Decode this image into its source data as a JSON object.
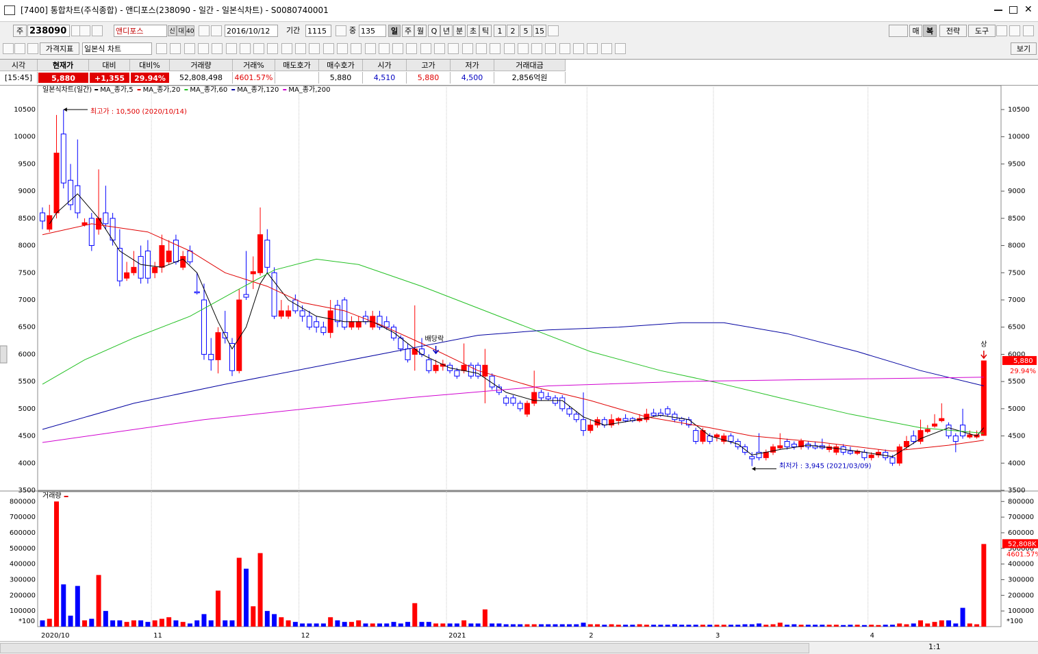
{
  "titlebar": {
    "title": "[7400] 통합차트(주식종합) - 앤디포스(238090 - 일간 - 일본식차트) - S0080740001"
  },
  "toolbar1": {
    "market": "주",
    "code": "238090",
    "name": "앤디포스",
    "flags": [
      "신",
      "대",
      "40"
    ],
    "date": "2016/10/12",
    "period_label": "기간",
    "period": "1115",
    "count_label": "중",
    "count": "135",
    "intervals": [
      "일",
      "주",
      "월",
      "Q",
      "년",
      "분",
      "초",
      "틱",
      "1",
      "2",
      "5",
      "15"
    ],
    "right": [
      "매",
      "복",
      "전략",
      "도구"
    ]
  },
  "toolbar2": {
    "indicator": "가격지표",
    "chart_type": "일본식 차트",
    "view": "보기"
  },
  "quote": {
    "cells": [
      {
        "header": "시각",
        "value": "[15:45]"
      },
      {
        "header": "현재가",
        "value": "5,880"
      },
      {
        "header": "대비",
        "value": "+1,355"
      },
      {
        "header": "대비%",
        "value": "29.94%"
      },
      {
        "header": "거래량",
        "value": "52,808,498"
      },
      {
        "header": "거래%",
        "value": "4601.57%"
      },
      {
        "header": "매도호가"
      },
      {
        "header": "매수호가",
        "value": "5,880"
      },
      {
        "header": "시가",
        "value": "4,510"
      },
      {
        "header": "고가",
        "value": "5,880"
      },
      {
        "header": "저가",
        "value": "4,500"
      },
      {
        "header": "거래대금",
        "value": "2,856억원"
      }
    ]
  },
  "statusbar": {
    "zoom": "1:1"
  },
  "chart_data": {
    "type": "candlestick",
    "legend_title": "일본식차트(일간)",
    "up_color": "#ff0000",
    "down_color": "#0000ff",
    "categories": [
      "2020/10",
      null,
      null,
      null,
      null,
      null,
      null,
      null,
      null,
      null,
      null,
      null,
      null,
      null,
      null,
      null,
      "11",
      null,
      null,
      null,
      null,
      null,
      null,
      null,
      null,
      null,
      null,
      null,
      null,
      null,
      null,
      null,
      null,
      null,
      null,
      null,
      null,
      "12",
      null,
      null,
      null,
      null,
      null,
      null,
      null,
      null,
      null,
      null,
      null,
      null,
      null,
      null,
      null,
      null,
      null,
      null,
      null,
      null,
      "2021",
      null,
      null,
      null,
      null,
      null,
      null,
      null,
      null,
      null,
      null,
      null,
      null,
      null,
      null,
      null,
      null,
      null,
      null,
      null,
      "2",
      null,
      null,
      null,
      null,
      null,
      null,
      null,
      null,
      null,
      null,
      null,
      null,
      null,
      null,
      null,
      null,
      null,
      "3",
      null,
      null,
      null,
      null,
      null,
      null,
      null,
      null,
      null,
      null,
      null,
      null,
      null,
      null,
      null,
      null,
      null,
      null,
      null,
      null,
      null,
      "4",
      null,
      null,
      null,
      null,
      null,
      null,
      null,
      null,
      null,
      null,
      null,
      null,
      null,
      null,
      null,
      null
    ],
    "candles": [
      [
        8600,
        8700,
        8300,
        8450
      ],
      [
        8300,
        8750,
        8250,
        8550
      ],
      [
        8600,
        10400,
        8500,
        9700
      ],
      [
        10050,
        10500,
        9050,
        9150
      ],
      [
        9200,
        9500,
        8650,
        8750
      ],
      [
        9100,
        9950,
        8500,
        8600
      ],
      [
        8380,
        8500,
        8350,
        8420
      ],
      [
        8500,
        8600,
        7900,
        8000
      ],
      [
        8300,
        9400,
        8200,
        8500
      ],
      [
        8600,
        9100,
        8300,
        8400
      ],
      [
        8500,
        8600,
        8000,
        8100
      ],
      [
        7950,
        8300,
        7250,
        7350
      ],
      [
        7400,
        7700,
        7350,
        7500
      ],
      [
        7500,
        7900,
        7450,
        7600
      ],
      [
        7800,
        8000,
        7300,
        7400
      ],
      [
        7900,
        8100,
        7300,
        7400
      ],
      [
        7500,
        7700,
        7400,
        7600
      ],
      [
        7600,
        8200,
        7500,
        8000
      ],
      [
        7700,
        8100,
        7650,
        7900
      ],
      [
        8100,
        8200,
        7650,
        7700
      ],
      [
        7600,
        7900,
        7550,
        7800
      ],
      [
        7900,
        8000,
        7650,
        7700
      ],
      [
        7150,
        7500,
        7100,
        7130
      ],
      [
        7000,
        7300,
        5900,
        6000
      ],
      [
        6000,
        6300,
        5700,
        5900
      ],
      [
        5900,
        6500,
        5650,
        6400
      ],
      [
        6400,
        6800,
        6200,
        6300
      ],
      [
        6200,
        6300,
        5600,
        5700
      ],
      [
        5700,
        7200,
        5650,
        7000
      ],
      [
        7100,
        7900,
        7000,
        7050
      ],
      [
        7480,
        7800,
        7200,
        7520
      ],
      [
        7500,
        8700,
        7450,
        8200
      ],
      [
        8100,
        8300,
        7500,
        7600
      ],
      [
        7500,
        7600,
        6650,
        6700
      ],
      [
        6700,
        7000,
        6650,
        6800
      ],
      [
        6700,
        6900,
        6650,
        6800
      ],
      [
        7000,
        7100,
        6750,
        6800
      ],
      [
        6800,
        6900,
        6600,
        6700
      ],
      [
        6700,
        6800,
        6450,
        6500
      ],
      [
        6600,
        6700,
        6400,
        6500
      ],
      [
        6500,
        6600,
        6350,
        6400
      ],
      [
        6400,
        7000,
        6300,
        6800
      ],
      [
        6900,
        7000,
        6500,
        6600
      ],
      [
        7000,
        7050,
        6450,
        6500
      ],
      [
        6500,
        6700,
        6450,
        6600
      ],
      [
        6500,
        6700,
        6450,
        6600
      ],
      [
        6700,
        6800,
        6550,
        6600
      ],
      [
        6500,
        6800,
        6450,
        6700
      ],
      [
        6700,
        6800,
        6450,
        6500
      ],
      [
        6600,
        6700,
        6450,
        6500
      ],
      [
        6500,
        6550,
        6250,
        6300
      ],
      [
        6300,
        6350,
        6050,
        6100
      ],
      [
        6100,
        6200,
        5850,
        5900
      ],
      [
        6000,
        6900,
        5700,
        6100
      ],
      [
        6100,
        6300,
        5950,
        6000
      ],
      [
        5900,
        6000,
        5650,
        5700
      ],
      [
        5700,
        5900,
        5650,
        5800
      ],
      [
        5780,
        5900,
        5700,
        5820
      ],
      [
        5800,
        5850,
        5650,
        5700
      ],
      [
        5700,
        5750,
        5550,
        5600
      ],
      [
        5700,
        6200,
        5650,
        5800
      ],
      [
        5800,
        5850,
        5550,
        5600
      ],
      [
        5800,
        5850,
        5550,
        5600
      ],
      [
        5600,
        6100,
        5100,
        5800
      ],
      [
        5600,
        5650,
        5350,
        5400
      ],
      [
        5400,
        5450,
        5250,
        5300
      ],
      [
        5200,
        5250,
        5050,
        5100
      ],
      [
        5200,
        5250,
        5050,
        5100
      ],
      [
        5100,
        5150,
        4950,
        5000
      ],
      [
        4900,
        5150,
        4850,
        5100
      ],
      [
        5100,
        5700,
        5050,
        5300
      ],
      [
        5300,
        5350,
        5150,
        5200
      ],
      [
        5220,
        5300,
        5150,
        5180
      ],
      [
        5200,
        5250,
        5050,
        5100
      ],
      [
        5200,
        5250,
        4950,
        5000
      ],
      [
        5000,
        5050,
        4850,
        4900
      ],
      [
        4900,
        4950,
        4750,
        4800
      ],
      [
        4800,
        5300,
        4500,
        4600
      ],
      [
        4600,
        4800,
        4550,
        4700
      ],
      [
        4700,
        4850,
        4650,
        4800
      ],
      [
        4800,
        4850,
        4650,
        4700
      ],
      [
        4700,
        4900,
        4650,
        4800
      ],
      [
        4780,
        4850,
        4700,
        4820
      ],
      [
        4820,
        4900,
        4750,
        4780
      ],
      [
        4820,
        4850,
        4750,
        4780
      ],
      [
        4780,
        4900,
        4750,
        4820
      ],
      [
        4800,
        5000,
        4750,
        4900
      ],
      [
        4920,
        5000,
        4850,
        4880
      ],
      [
        4920,
        5000,
        4850,
        4880
      ],
      [
        5000,
        5050,
        4850,
        4900
      ],
      [
        4900,
        4950,
        4750,
        4800
      ],
      [
        4820,
        4850,
        4700,
        4780
      ],
      [
        4800,
        4850,
        4650,
        4700
      ],
      [
        4600,
        4650,
        4350,
        4400
      ],
      [
        4400,
        4650,
        4350,
        4600
      ],
      [
        4500,
        4550,
        4350,
        4400
      ],
      [
        4480,
        4550,
        4400,
        4520
      ],
      [
        4400,
        4550,
        4350,
        4500
      ],
      [
        4500,
        4550,
        4350,
        4400
      ],
      [
        4400,
        4450,
        4250,
        4300
      ],
      [
        4300,
        4350,
        4150,
        4200
      ],
      [
        4120,
        4200,
        3945,
        4080
      ],
      [
        4200,
        4550,
        4050,
        4100
      ],
      [
        4100,
        4250,
        4050,
        4200
      ],
      [
        4200,
        4350,
        4150,
        4300
      ],
      [
        4280,
        4550,
        4250,
        4320
      ],
      [
        4400,
        4450,
        4250,
        4300
      ],
      [
        4350,
        4400,
        4250,
        4300
      ],
      [
        4300,
        4450,
        4250,
        4400
      ],
      [
        4350,
        4400,
        4250,
        4300
      ],
      [
        4320,
        4400,
        4250,
        4280
      ],
      [
        4320,
        4450,
        4250,
        4280
      ],
      [
        4250,
        4350,
        4200,
        4300
      ],
      [
        4200,
        4350,
        4150,
        4300
      ],
      [
        4300,
        4350,
        4150,
        4200
      ],
      [
        4220,
        4300,
        4150,
        4180
      ],
      [
        4180,
        4250,
        4150,
        4220
      ],
      [
        4200,
        4250,
        4050,
        4100
      ],
      [
        4100,
        4200,
        4050,
        4150
      ],
      [
        4150,
        4250,
        4100,
        4200
      ],
      [
        4200,
        4250,
        4050,
        4100
      ],
      [
        4100,
        4150,
        3950,
        4000
      ],
      [
        4000,
        4350,
        3950,
        4300
      ],
      [
        4300,
        4500,
        4250,
        4400
      ],
      [
        4500,
        4600,
        4350,
        4400
      ],
      [
        4400,
        4800,
        4350,
        4600
      ],
      [
        4580,
        4700,
        4550,
        4620
      ],
      [
        4680,
        4900,
        4650,
        4720
      ],
      [
        4780,
        5100,
        4750,
        4820
      ],
      [
        4700,
        4750,
        4450,
        4500
      ],
      [
        4500,
        4550,
        4200,
        4400
      ],
      [
        4700,
        5000,
        4450,
        4500
      ],
      [
        4480,
        4600,
        4450,
        4520
      ],
      [
        4480,
        4600,
        4450,
        4520
      ],
      [
        4510,
        5880,
        4500,
        5880
      ]
    ],
    "ylim": [
      3500,
      10940
    ],
    "yticks": [
      3500,
      4000,
      4500,
      5000,
      5500,
      6000,
      6500,
      7000,
      7500,
      8000,
      8500,
      9000,
      9500,
      10000,
      10500
    ],
    "series": [
      {
        "name": "MA_종가,5",
        "color": "#000000",
        "x": [
          1,
          2,
          5,
          8,
          11,
          14,
          17,
          20,
          22,
          25,
          27,
          29,
          31,
          32,
          35,
          39,
          43,
          47,
          50,
          54,
          58,
          62,
          66,
          70,
          74,
          77,
          80,
          84,
          88,
          92,
          95,
          99,
          101,
          105,
          109,
          113,
          117,
          121,
          125,
          129,
          133,
          134
        ],
        "values": [
          8400,
          8600,
          8950,
          8500,
          7900,
          7650,
          7600,
          7750,
          7500,
          6600,
          6100,
          6500,
          7300,
          7500,
          7000,
          6700,
          6600,
          6600,
          6400,
          6000,
          5750,
          5650,
          5300,
          5150,
          5150,
          4850,
          4700,
          4780,
          4880,
          4800,
          4500,
          4350,
          4150,
          4250,
          4330,
          4270,
          4200,
          4120,
          4450,
          4650,
          4500,
          4650
        ]
      },
      {
        "name": "MA_종가,20",
        "color": "#e00000",
        "x": [
          0,
          7,
          15,
          21,
          26,
          32,
          37,
          43,
          48,
          54,
          62,
          70,
          78,
          86,
          95,
          101,
          111,
          121,
          129,
          134
        ],
        "values": [
          8200,
          8400,
          8250,
          7900,
          7500,
          7250,
          6950,
          6800,
          6550,
          6200,
          5700,
          5400,
          5150,
          4850,
          4650,
          4500,
          4380,
          4220,
          4330,
          4420
        ]
      },
      {
        "name": "MA_종가,60",
        "color": "#22c022",
        "x": [
          0,
          6,
          13,
          21,
          28,
          33,
          39,
          45,
          54,
          62,
          70,
          78,
          88,
          96,
          105,
          115,
          125,
          134
        ],
        "values": [
          5450,
          5900,
          6300,
          6700,
          7200,
          7550,
          7750,
          7650,
          7250,
          6850,
          6450,
          6050,
          5700,
          5480,
          5200,
          4900,
          4650,
          4550
        ]
      },
      {
        "name": "MA_종가,120",
        "color": "#0000a0",
        "x": [
          0,
          13,
          26,
          38,
          52,
          62,
          72,
          82,
          91,
          97,
          106,
          116,
          125,
          134
        ],
        "values": [
          4620,
          5100,
          5450,
          5750,
          6100,
          6350,
          6450,
          6500,
          6580,
          6580,
          6380,
          6050,
          5700,
          5420
        ]
      },
      {
        "name": "MA_종가,200",
        "color": "#d000d0",
        "x": [
          0,
          23,
          52,
          72,
          91,
          111,
          134
        ],
        "values": [
          4380,
          4800,
          5200,
          5420,
          5500,
          5540,
          5580
        ]
      }
    ],
    "annotations": [
      {
        "text": "최고가 : 10,500 (2020/10/14)",
        "color": "#e00000"
      },
      {
        "text": "최저가 : 3,945 (2021/03/09)",
        "color": "#0000c0"
      },
      {
        "text": "배당락",
        "color": "#000000"
      },
      {
        "text": "상",
        "color": "#000000"
      }
    ],
    "last_price_label": "5,880",
    "last_change_label": "29.94%",
    "volume": {
      "label": "거래량",
      "color": "#e00000",
      "ylim": [
        0,
        845000
      ],
      "yticks": [
        100000,
        200000,
        300000,
        400000,
        500000,
        600000,
        700000,
        800000
      ],
      "unit_label": "*100",
      "last_label": "52,808K",
      "last_change_label": "4601.57%",
      "values": [
        40000,
        50000,
        800000,
        270000,
        70000,
        260000,
        40000,
        50000,
        330000,
        100000,
        40000,
        40000,
        30000,
        40000,
        40000,
        30000,
        40000,
        50000,
        60000,
        40000,
        30000,
        20000,
        40000,
        80000,
        40000,
        230000,
        40000,
        40000,
        440000,
        370000,
        130000,
        470000,
        100000,
        80000,
        60000,
        40000,
        30000,
        20000,
        20000,
        20000,
        20000,
        60000,
        40000,
        30000,
        30000,
        40000,
        20000,
        20000,
        20000,
        20000,
        30000,
        20000,
        30000,
        150000,
        30000,
        30000,
        20000,
        20000,
        20000,
        20000,
        40000,
        20000,
        20000,
        110000,
        20000,
        20000,
        15000,
        15000,
        15000,
        15000,
        15000,
        15000,
        15000,
        15000,
        15000,
        15000,
        15000,
        25000,
        15000,
        15000,
        12000,
        15000,
        12000,
        12000,
        12000,
        15000,
        12000,
        12000,
        12000,
        12000,
        15000,
        12000,
        12000,
        12000,
        12000,
        12000,
        12000,
        12000,
        12000,
        12000,
        15000,
        15000,
        20000,
        12000,
        15000,
        25000,
        12000,
        15000,
        12000,
        12000,
        12000,
        12000,
        12000,
        12000,
        10000,
        12000,
        12000,
        10000,
        12000,
        10000,
        12000,
        12000,
        20000,
        15000,
        20000,
        40000,
        20000,
        30000,
        40000,
        40000,
        20000,
        120000,
        20000,
        15000,
        528085
      ]
    }
  }
}
